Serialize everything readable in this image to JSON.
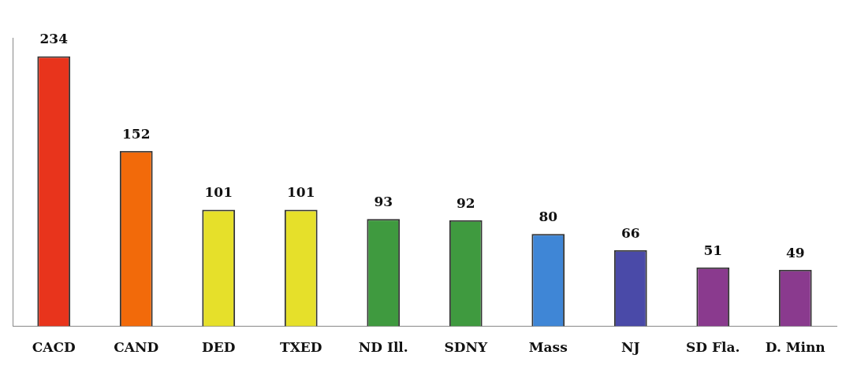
{
  "chart_data": {
    "type": "bar",
    "categories": [
      "CACD",
      "CAND",
      "DED",
      "TXED",
      "ND Ill.",
      "SDNY",
      "Mass",
      "NJ",
      "SD Fla.",
      "D. Minn"
    ],
    "values": [
      234,
      152,
      101,
      101,
      93,
      92,
      80,
      66,
      51,
      49
    ],
    "colors": [
      "#e8341c",
      "#f26a0a",
      "#e6e02a",
      "#e6e02a",
      "#3f9a3f",
      "#3f9a3f",
      "#3f86d6",
      "#4a4aa8",
      "#8a3a8e",
      "#8a3a8e"
    ],
    "data_labels": true,
    "grid": false,
    "legend": false
  }
}
